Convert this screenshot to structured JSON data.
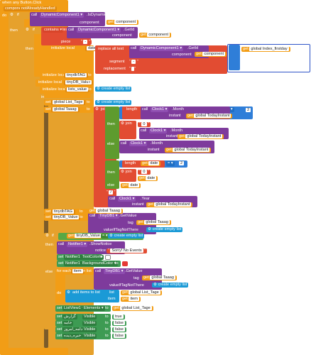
{
  "event": {
    "header": "when any Button.Click",
    "param1": "component",
    "param2": "notAlreadyHandled",
    "do": "do"
  },
  "if1": {
    "if": "if",
    "call": "call",
    "component_name": "DynamicComponent1",
    "method": ".IsDynamic",
    "component_label": "component",
    "get": "get",
    "var": "component"
  },
  "then1": "then",
  "if2": {
    "if": "if",
    "contains": "contains",
    "text_label": "text",
    "call": "call",
    "component_name": "DynamicComponent1",
    "method": ".GetId",
    "component_label": "component",
    "get": "get",
    "var": "component",
    "piece_label": "piece",
    "piece_value": "-"
  },
  "then2": "then",
  "init_date": {
    "label": "initialize local",
    "var": "date",
    "to": "to"
  },
  "replace": {
    "label": "replace all text",
    "call": "call",
    "component_name": "DynamicComponent1",
    "method": ".GetId",
    "component_label": "component",
    "get": "get",
    "var": "component",
    "segment_label": "segment",
    "segment_value": "-",
    "replacement_label": "replacement",
    "replacement_value": " "
  },
  "get_index": {
    "get": "get",
    "var": "global Index_firstday"
  },
  "init_tinydb_tag": {
    "label": "initialize local",
    "var": "tinydbTAG",
    "to": "to"
  },
  "init_tinydb_value": {
    "label": "initialize local",
    "var": "tinyDB_Value",
    "to": "to"
  },
  "init_lists_value": {
    "label": "initialize local",
    "var": "lists_value",
    "to": "to",
    "create": "create empty list"
  },
  "in_label": "in",
  "set_list_tage": {
    "set": "set",
    "var": "global List_Tage",
    "to": "to",
    "create": "create empty list"
  },
  "set_taaag": {
    "set": "set",
    "var": "global Taaag",
    "to": "to"
  },
  "join1": "join",
  "len1": {
    "label": "length",
    "call": "call",
    "component": "Clock1",
    "method": ".Month",
    "instant_label": "instant",
    "get": "get",
    "var": "global TodayInstant",
    "op": "=",
    "value": "2"
  },
  "then3": "then",
  "join2": "join",
  "zero": "0",
  "clock_month_a": {
    "call": "call",
    "component": "Clock1",
    "method": ".Month",
    "instant_label": "instant",
    "get": "get",
    "var": "global TodayInstant"
  },
  "else1": "else",
  "clock_month_b": {
    "call": "call",
    "component": "Clock1",
    "method": ".Month",
    "instant_label": "instant",
    "get": "get",
    "var": "global TodayInstant"
  },
  "len2": {
    "label": "length",
    "get": "get",
    "var": "date",
    "op": "=",
    "value": "2"
  },
  "then4": "then",
  "join3": "join",
  "get_date_a": {
    "get": "get",
    "var": "date"
  },
  "else2": "else",
  "get_date_b": {
    "get": "get",
    "var": "date"
  },
  "slash": "/",
  "clock_year": {
    "call": "call",
    "component": "Clock1",
    "method": ".Year",
    "instant_label": "instant",
    "get": "get",
    "var": "global TodayInstant"
  },
  "set_tinydb_tag": {
    "set": "set",
    "var": "tinydbTAG",
    "to": "to",
    "get_var": "global Taaag"
  },
  "set_tinydb_value": {
    "set": "set",
    "var": "tinyDB_Value",
    "to": "to",
    "call": "call",
    "component": "TinyDB1",
    "method": ".GetValue",
    "tag_label": "tag",
    "get": "get",
    "tag_var": "global Taaag",
    "vitn_label": "valueIfTagNotThere",
    "create": "create empty list"
  },
  "if3": {
    "if": "if",
    "get": "get",
    "var": "tinyDB_Value",
    "op": "=",
    "create": "create empty list"
  },
  "then5": "then",
  "notifier": {
    "call": "call",
    "component": "Notifier1",
    "method": ".ShowNotice",
    "notice_label": "notice",
    "notice_value": "Sorry! No Events"
  },
  "set_notifier_color": {
    "set": "set",
    "component": "Notifier1",
    "prop": "TextColor",
    "to": "to"
  },
  "set_notifier_bg": {
    "set": "set",
    "component": "Notifier1",
    "prop": "BackgroundColor",
    "to": "to"
  },
  "else3": "else",
  "foreach": {
    "label": "for each",
    "var": "item",
    "in_list": "in list",
    "call": "call",
    "component": "TinyDB1",
    "method": ".GetValue",
    "tag_label": "tag",
    "get": "get",
    "tag_var": "global Taaag",
    "vitn_label": "valueIfTagNotThere",
    "create": "create empty list"
  },
  "do2": "do",
  "add_items": {
    "label": "add items to list",
    "list_label": "list",
    "get": "get",
    "list_var": "global List_Tage",
    "item_label": "item",
    "item_var": "item"
  },
  "set_listview": {
    "set": "set",
    "component": "ListView1",
    "prop": "Elements",
    "to": "to",
    "get": "get",
    "var": "global List_Tage"
  },
  "visible_rows": [
    {
      "set": "set",
      "component": "گزارش",
      "prop": "Visible",
      "to": "to",
      "value": "true"
    },
    {
      "set": "set",
      "component": "خامه",
      "prop": "Visible",
      "to": "to",
      "value": "false"
    },
    {
      "set": "set",
      "component": "دامه_امروز",
      "prop": "Visible",
      "to": "to",
      "value": "false"
    },
    {
      "set": "set",
      "component": "خبره_ديده",
      "prop": "Visible",
      "to": "to",
      "value": "false"
    }
  ],
  "colors": {
    "event": "#f29d16",
    "component": "#7e3b9c",
    "text": "#e24c32",
    "logic": "#3d9b53",
    "list": "#1b9ad6",
    "math": "#2f7ed8",
    "white": "#ffffff",
    "black": "#000000",
    "yellow": "#ffe200"
  }
}
